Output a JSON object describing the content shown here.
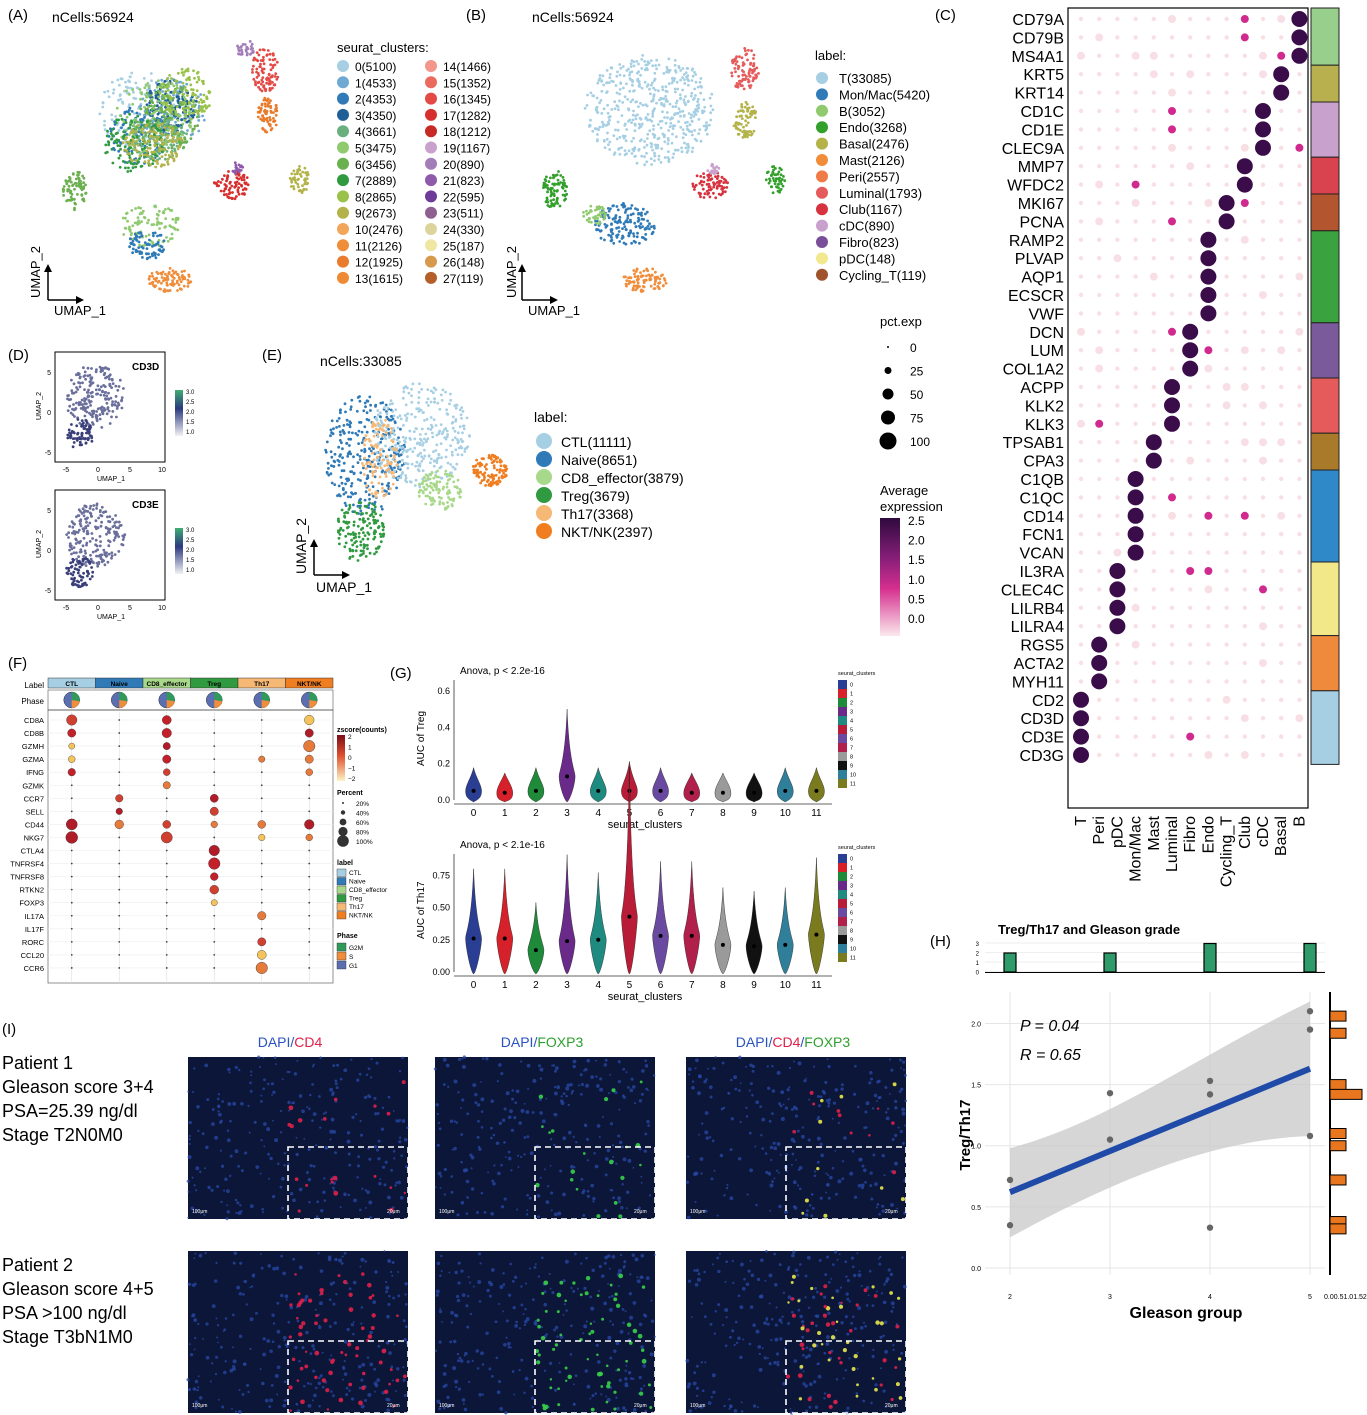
{
  "panel_labels": {
    "A": "(A)",
    "B": "(B)",
    "C": "(C)",
    "D": "(D)",
    "E": "(E)",
    "F": "(F)",
    "G": "(G)",
    "H": "(H)",
    "I": "(I)"
  },
  "colors": {
    "clusters": [
      "#a6cfe4",
      "#6fa9d3",
      "#2f7ab7",
      "#1f5f96",
      "#6ab07f",
      "#8fca6f",
      "#6ab04f",
      "#2f9a3f",
      "#9ac24a",
      "#b3b34a",
      "#f2a65a",
      "#f08d3a",
      "#e97b2c",
      "#ef8a34",
      "#f3968c",
      "#ea6a5e",
      "#e34a46",
      "#d62f2d",
      "#c72a25",
      "#c8a2cc",
      "#a37db8",
      "#8f5aaa",
      "#6d3b98",
      "#8e5f8f",
      "#ddd49b",
      "#eee6a2",
      "#d79a4d",
      "#b45e2a"
    ],
    "labels": [
      "#a6cfe4",
      "#2f7ab7",
      "#8fca6f",
      "#33a02c",
      "#b3b34a",
      "#f08d3a",
      "#ef7b46",
      "#e55a5a",
      "#d7333f",
      "#c8a2cc",
      "#7a4f9a",
      "#f1e88f",
      "#a0522d"
    ],
    "tcells": [
      "#a6cfe4",
      "#2f7ab7",
      "#a8d88a",
      "#2f9a3f",
      "#f5b875",
      "#f07d1f"
    ],
    "dot_high": "#3a0d4a",
    "dot_mid": "#d12a8e",
    "dot_low": "#f8dfe5"
  },
  "panelA": {
    "title": "nCells:56924",
    "legend_title": "seurat_clusters:",
    "items": [
      "0(5100)",
      "1(4533)",
      "2(4353)",
      "3(4350)",
      "4(3661)",
      "5(3475)",
      "6(3456)",
      "7(2889)",
      "8(2865)",
      "9(2673)",
      "10(2476)",
      "11(2126)",
      "12(1925)",
      "13(1615)",
      "14(1466)",
      "15(1352)",
      "16(1345)",
      "17(1282)",
      "18(1212)",
      "19(1167)",
      "20(890)",
      "21(823)",
      "22(595)",
      "23(511)",
      "24(330)",
      "25(187)",
      "26(148)",
      "27(119)"
    ],
    "xlab": "UMAP_1",
    "ylab": "UMAP_2"
  },
  "panelB": {
    "title": "nCells:56924",
    "legend_title": "label:",
    "items": [
      "T(33085)",
      "Mon/Mac(5420)",
      "B(3052)",
      "Endo(3268)",
      "Basal(2476)",
      "Mast(2126)",
      "Peri(2557)",
      "Luminal(1793)",
      "Club(1167)",
      "cDC(890)",
      "Fibro(823)",
      "pDC(148)",
      "Cycling_T(119)"
    ],
    "xlab": "UMAP_1",
    "ylab": "UMAP_2"
  },
  "panelC": {
    "genes": [
      "CD79A",
      "CD79B",
      "MS4A1",
      "KRT5",
      "KRT14",
      "CD1C",
      "CD1E",
      "CLEC9A",
      "MMP7",
      "WFDC2",
      "MKI67",
      "PCNA",
      "RAMP2",
      "PLVAP",
      "AQP1",
      "ECSCR",
      "VWF",
      "DCN",
      "LUM",
      "COL1A2",
      "ACPP",
      "KLK2",
      "KLK3",
      "TPSAB1",
      "CPA3",
      "C1QB",
      "C1QC",
      "CD14",
      "FCN1",
      "VCAN",
      "IL3RA",
      "CLEC4C",
      "LILRB4",
      "LILRA4",
      "RGS5",
      "ACTA2",
      "MYH11",
      "CD2",
      "CD3D",
      "CD3E",
      "CD3G"
    ],
    "cell_types": [
      "T",
      "Peri",
      "pDC",
      "Mon/Mac",
      "Mast",
      "Luminal",
      "Fibro",
      "Endo",
      "Cycling_T",
      "Club",
      "cDC",
      "Basal",
      "B"
    ],
    "gene_groups": [
      3,
      2,
      3,
      2,
      2,
      5,
      3,
      3,
      2,
      5,
      4,
      3,
      4
    ],
    "group_colors": [
      "#98cf8c",
      "#b8b04e",
      "#c8a2cc",
      "#d9434f",
      "#b3562f",
      "#3aa23f",
      "#7a5a9a",
      "#e55a5a",
      "#a97a2a",
      "#2f88c8",
      "#f2e88a",
      "#ef8a3d",
      "#a6cfe4"
    ],
    "size_title": "pct.exp",
    "size_ticks": [
      "0",
      "25",
      "50",
      "75",
      "100"
    ],
    "color_title": "Average\nexpression",
    "color_ticks": [
      "2.5",
      "2.0",
      "1.5",
      "1.0",
      "0.5",
      "0.0"
    ]
  },
  "panelD": {
    "genes": [
      "CD3D",
      "CD3E"
    ],
    "cbar": [
      "3.0",
      "2.5",
      "2.0",
      "1.5",
      "1.0"
    ],
    "xticks": [
      "-5",
      "0",
      "5",
      "10"
    ],
    "yticks": [
      "5",
      "0",
      "-5"
    ],
    "xlab": "UMAP_1",
    "ylab": "UMAP_2"
  },
  "panelE": {
    "title": "nCells:33085",
    "legend_title": "label:",
    "items": [
      "CTL(11111)",
      "Naive(8651)",
      "CD8_effector(3879)",
      "Treg(3679)",
      "Th17(3368)",
      "NKT/NK(2397)"
    ],
    "xlab": "UMAP_1",
    "ylab": "UMAP_2"
  },
  "panelF": {
    "label_title": "Label",
    "phase_title": "Phase",
    "groups": [
      "CTL",
      "Naive",
      "CD8_effector",
      "Treg",
      "Th17",
      "NKT/NK"
    ],
    "genes": [
      "CD8A",
      "CD8B",
      "GZMH",
      "GZMA",
      "IFNG",
      "GZMK",
      "CCR7",
      "SELL",
      "CD44",
      "NKG7",
      "CTLA4",
      "TNFRSF4",
      "TNFRSF8",
      "RTKN2",
      "FOXP3",
      "IL17A",
      "IL17F",
      "RORC",
      "CCL20",
      "CCR6"
    ],
    "z_title": "zscore(counts)",
    "z_ticks": [
      "2",
      "1",
      "0",
      "−1",
      "−2"
    ],
    "pct_title": "Percent",
    "pct_ticks": [
      "20%",
      "40%",
      "60%",
      "80%",
      "100%"
    ],
    "legend_label_title": "label",
    "legend_labels": [
      "CTL",
      "Naive",
      "CD8_effector",
      "Treg",
      "Th17",
      "NKT/NK"
    ],
    "legend_phase_title": "Phase",
    "legend_phases": [
      "G2M",
      "S",
      "G1"
    ],
    "phase_colors": [
      "#2f9a5a",
      "#f08d3a",
      "#5b6fb0"
    ]
  },
  "panelG": {
    "top": {
      "anno": "Anova, p < 2.2e-16",
      "ylab": "AUC of Treg",
      "yticks": [
        "0.0",
        "0.2",
        "0.4",
        "0.6"
      ],
      "xlab": "seurat_clusters"
    },
    "bottom": {
      "anno": "Anova, p < 2.1e-16",
      "ylab": "AUC of Th17",
      "yticks": [
        "0.00",
        "0.25",
        "0.50",
        "0.75"
      ],
      "xlab": "seurat_clusters"
    },
    "categories": [
      "0",
      "1",
      "2",
      "3",
      "4",
      "5",
      "6",
      "7",
      "8",
      "9",
      "10",
      "11"
    ],
    "legend_title": "seurat_clusters",
    "violin_colors": [
      "#2a3f94",
      "#d6202a",
      "#1f8a3a",
      "#6a2a8a",
      "#1f8a80",
      "#b81c36",
      "#6a4aa0",
      "#b0204a",
      "#9a9a9a",
      "#111111",
      "#2f7f9a",
      "#7a7a1f"
    ]
  },
  "panelH": {
    "title": "Treg/Th17 and Gleason grade",
    "p_text": "P = 0.04",
    "r_text": "R = 0.65",
    "xlab": "Gleason group",
    "ylab": "Treg/Th17",
    "xticks": [
      "2",
      "3",
      "4",
      "5"
    ],
    "yticks": [
      "0.0",
      "0.5",
      "1.0",
      "1.5",
      "2.0"
    ],
    "top_ticks": [
      "3",
      "2",
      "1",
      "0"
    ],
    "side_ticks": "0.00.51.01.52.0"
  },
  "panelI": {
    "headers": [
      [
        {
          "t": "DAPI",
          "c": "#2a52c0"
        },
        {
          "t": "/",
          "c": "#2a52c0"
        },
        {
          "t": "CD4",
          "c": "#e0204a"
        }
      ],
      [
        {
          "t": "DAPI",
          "c": "#2a52c0"
        },
        {
          "t": "/",
          "c": "#2a52c0"
        },
        {
          "t": "FOXP3",
          "c": "#2ca02c"
        }
      ],
      [
        {
          "t": "DAPI",
          "c": "#2a52c0"
        },
        {
          "t": "/",
          "c": "#2a52c0"
        },
        {
          "t": "CD4",
          "c": "#e0204a"
        },
        {
          "t": "/",
          "c": "#2a52c0"
        },
        {
          "t": "FOXP3",
          "c": "#2ca02c"
        }
      ]
    ],
    "patient1": [
      "Patient 1",
      "Gleason score 3+4",
      "PSA=25.39 ng/dl",
      "Stage T2N0M0"
    ],
    "patient2": [
      "Patient 2",
      "Gleason score 4+5",
      "PSA >100 ng/dl",
      "Stage T3bN1M0"
    ],
    "scalebar_big": "100μm",
    "scalebar_small": "20μm"
  },
  "chart_data": [
    {
      "type": "scatter",
      "title": "nCells:56924",
      "xlabel": "UMAP_1",
      "ylabel": "UMAP_2",
      "legend_title": "seurat_clusters:",
      "categories": [
        "0",
        "1",
        "2",
        "3",
        "4",
        "5",
        "6",
        "7",
        "8",
        "9",
        "10",
        "11",
        "12",
        "13",
        "14",
        "15",
        "16",
        "17",
        "18",
        "19",
        "20",
        "21",
        "22",
        "23",
        "24",
        "25",
        "26",
        "27"
      ],
      "counts": [
        5100,
        4533,
        4353,
        4350,
        3661,
        3475,
        3456,
        2889,
        2865,
        2673,
        2476,
        2126,
        1925,
        1615,
        1466,
        1352,
        1345,
        1282,
        1212,
        1167,
        890,
        823,
        595,
        511,
        330,
        187,
        148,
        119
      ]
    },
    {
      "type": "scatter",
      "title": "nCells:56924",
      "xlabel": "UMAP_1",
      "ylabel": "UMAP_2",
      "legend_title": "label:",
      "categories": [
        "T",
        "Mon/Mac",
        "B",
        "Endo",
        "Basal",
        "Mast",
        "Peri",
        "Luminal",
        "Club",
        "cDC",
        "Fibro",
        "pDC",
        "Cycling_T"
      ],
      "counts": [
        33085,
        5420,
        3052,
        3268,
        2476,
        2126,
        2557,
        1793,
        1167,
        890,
        823,
        148,
        119
      ]
    },
    {
      "type": "scatter",
      "title": "nCells:33085",
      "xlabel": "UMAP_1",
      "ylabel": "UMAP_2",
      "legend_title": "label:",
      "categories": [
        "CTL",
        "Naive",
        "CD8_effector",
        "Treg",
        "Th17",
        "NKT/NK"
      ],
      "counts": [
        11111,
        8651,
        3879,
        3679,
        3368,
        2397
      ]
    },
    {
      "type": "violin",
      "annotation": "Anova, p < 2.2e-16",
      "xlabel": "seurat_clusters",
      "ylabel": "AUC of Treg",
      "ylim": [
        0,
        0.65
      ],
      "categories": [
        "0",
        "1",
        "2",
        "3",
        "4",
        "5",
        "6",
        "7",
        "8",
        "9",
        "10",
        "11"
      ],
      "medians": [
        0.05,
        0.04,
        0.05,
        0.13,
        0.05,
        0.05,
        0.05,
        0.04,
        0.04,
        0.04,
        0.05,
        0.05
      ]
    },
    {
      "type": "violin",
      "annotation": "Anova, p < 2.1e-16",
      "xlabel": "seurat_clusters",
      "ylabel": "AUC of Th17",
      "ylim": [
        0,
        0.9
      ],
      "categories": [
        "0",
        "1",
        "2",
        "3",
        "4",
        "5",
        "6",
        "7",
        "8",
        "9",
        "10",
        "11"
      ],
      "medians": [
        0.26,
        0.26,
        0.17,
        0.24,
        0.25,
        0.43,
        0.28,
        0.28,
        0.21,
        0.2,
        0.21,
        0.29
      ]
    },
    {
      "type": "scatter",
      "title": "Treg/Th17 and Gleason grade",
      "xlabel": "Gleason group",
      "ylabel": "Treg/Th17",
      "ylim": [
        0,
        2.2
      ],
      "points": [
        [
          2,
          0.72
        ],
        [
          2,
          0.35
        ],
        [
          3,
          1.43
        ],
        [
          3,
          1.05
        ],
        [
          4,
          1.53
        ],
        [
          4,
          1.42
        ],
        [
          4,
          0.33
        ],
        [
          5,
          2.1
        ],
        [
          5,
          1.95
        ],
        [
          5,
          1.08
        ]
      ],
      "fit": {
        "x": [
          2,
          5
        ],
        "y": [
          0.62,
          1.63
        ]
      },
      "annotations": [
        "P = 0.04",
        "R = 0.65"
      ],
      "top_hist": [
        2,
        2,
        3,
        3
      ]
    }
  ]
}
